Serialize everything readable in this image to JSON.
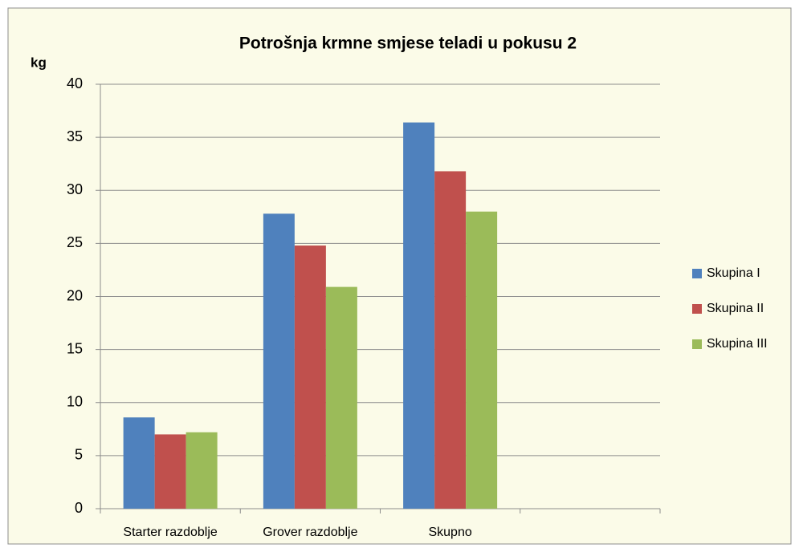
{
  "chart_data": {
    "type": "bar",
    "title": "Potrošnja krmne smjese teladi u pokusu 2",
    "ylabel": "kg",
    "categories": [
      "Starter razdoblje",
      "Grover razdoblje",
      "Skupno",
      null
    ],
    "series": [
      {
        "name": "Skupina I",
        "color": "#4f81bd",
        "values": [
          8.6,
          27.8,
          36.4,
          null
        ]
      },
      {
        "name": "Skupina II",
        "color": "#c0504d",
        "values": [
          7.0,
          24.8,
          31.8,
          null
        ]
      },
      {
        "name": "Skupina III",
        "color": "#9bbb59",
        "values": [
          7.2,
          20.9,
          28.0,
          null
        ]
      }
    ],
    "ylim": [
      0,
      40
    ],
    "yticks": [
      0,
      5,
      10,
      15,
      20,
      25,
      30,
      35,
      40
    ],
    "grid": true,
    "legend": "right"
  }
}
